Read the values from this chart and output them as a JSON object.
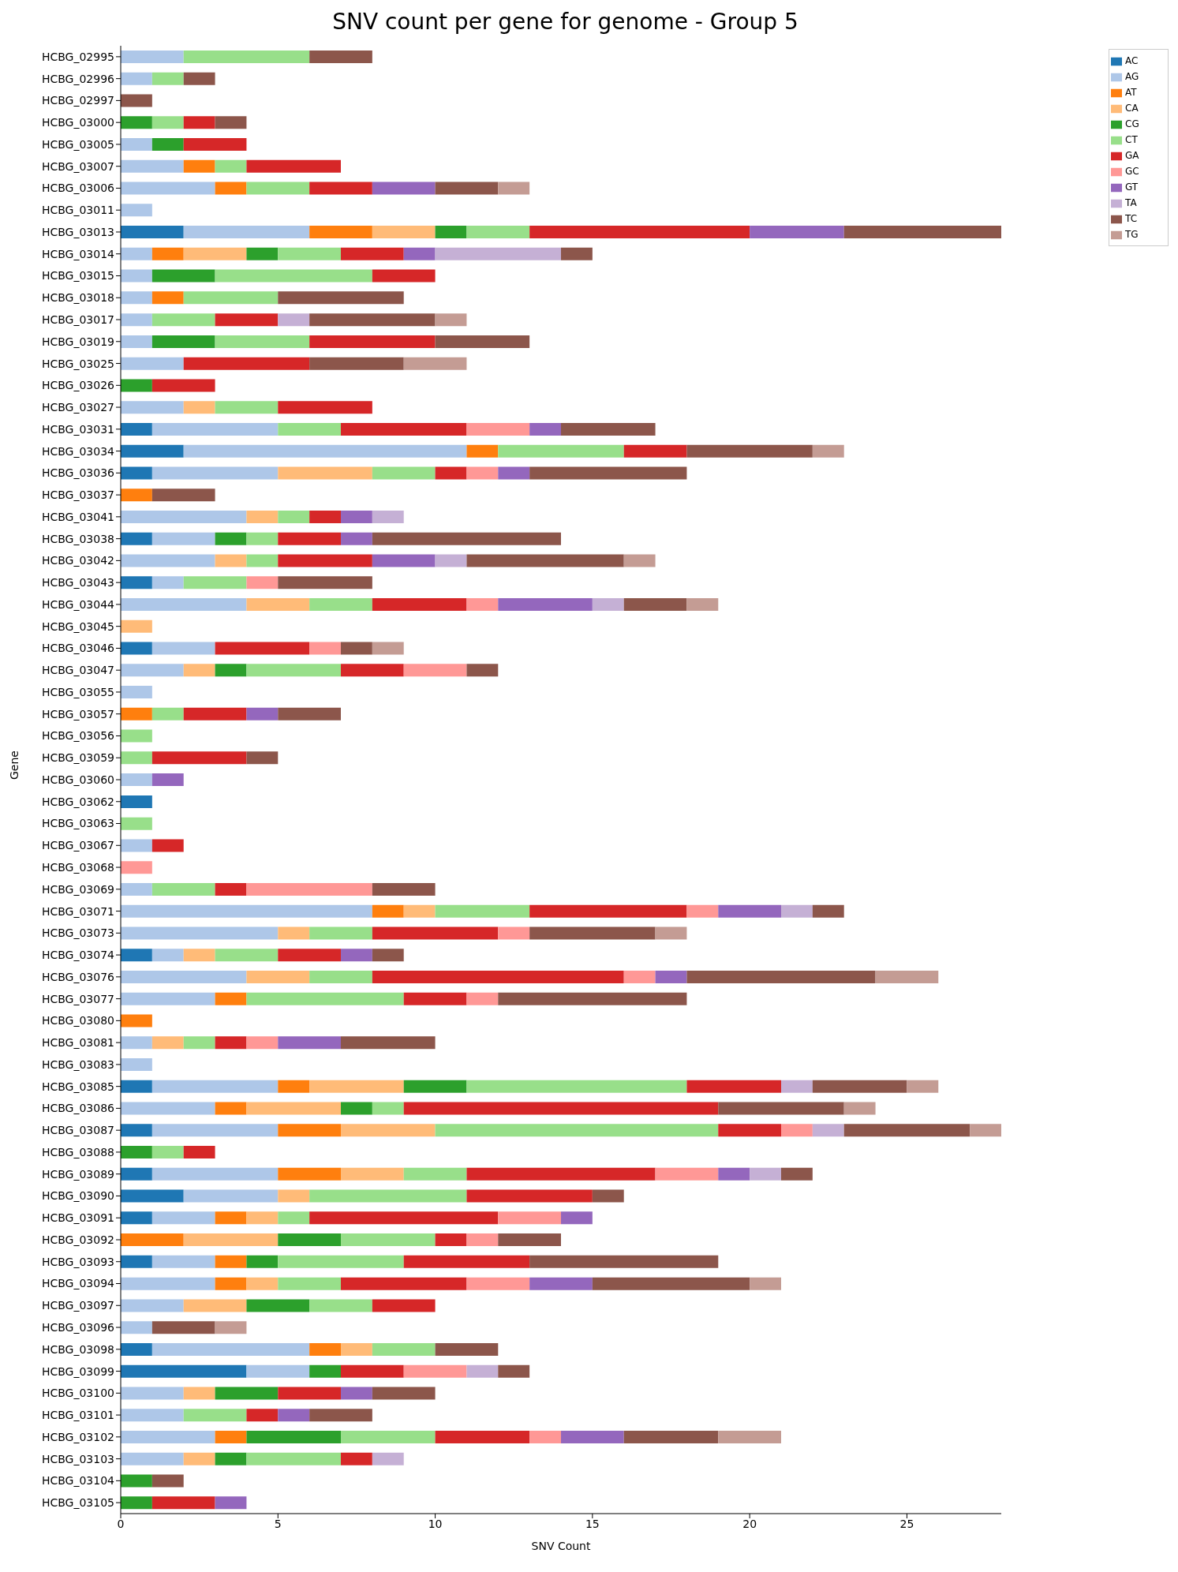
{
  "chart_data": {
    "type": "bar",
    "orientation": "horizontal",
    "stacked": true,
    "title": "SNV count per gene for genome - Group 5",
    "xlabel": "SNV Count",
    "ylabel": "Gene",
    "legend": "top right",
    "xlim": [
      0,
      28
    ],
    "xticks": [
      0,
      5,
      10,
      15,
      20,
      25
    ],
    "categories": [
      "HCBG_02995",
      "HCBG_02996",
      "HCBG_02997",
      "HCBG_03000",
      "HCBG_03005",
      "HCBG_03007",
      "HCBG_03006",
      "HCBG_03011",
      "HCBG_03013",
      "HCBG_03014",
      "HCBG_03015",
      "HCBG_03018",
      "HCBG_03017",
      "HCBG_03019",
      "HCBG_03025",
      "HCBG_03026",
      "HCBG_03027",
      "HCBG_03031",
      "HCBG_03034",
      "HCBG_03036",
      "HCBG_03037",
      "HCBG_03041",
      "HCBG_03038",
      "HCBG_03042",
      "HCBG_03043",
      "HCBG_03044",
      "HCBG_03045",
      "HCBG_03046",
      "HCBG_03047",
      "HCBG_03055",
      "HCBG_03057",
      "HCBG_03056",
      "HCBG_03059",
      "HCBG_03060",
      "HCBG_03062",
      "HCBG_03063",
      "HCBG_03067",
      "HCBG_03068",
      "HCBG_03069",
      "HCBG_03071",
      "HCBG_03073",
      "HCBG_03074",
      "HCBG_03076",
      "HCBG_03077",
      "HCBG_03080",
      "HCBG_03081",
      "HCBG_03083",
      "HCBG_03085",
      "HCBG_03086",
      "HCBG_03087",
      "HCBG_03088",
      "HCBG_03089",
      "HCBG_03090",
      "HCBG_03091",
      "HCBG_03092",
      "HCBG_03093",
      "HCBG_03094",
      "HCBG_03097",
      "HCBG_03096",
      "HCBG_03098",
      "HCBG_03099",
      "HCBG_03100",
      "HCBG_03101",
      "HCBG_03102",
      "HCBG_03103",
      "HCBG_03104",
      "HCBG_03105"
    ],
    "series": [
      {
        "name": "AC",
        "color": "#1f77b4",
        "values": [
          null,
          null,
          null,
          null,
          null,
          null,
          null,
          null,
          2,
          null,
          null,
          null,
          null,
          null,
          null,
          null,
          null,
          1,
          2,
          1,
          null,
          null,
          1,
          null,
          1,
          null,
          null,
          1,
          null,
          null,
          null,
          null,
          null,
          null,
          1,
          null,
          null,
          null,
          null,
          null,
          null,
          1,
          null,
          null,
          null,
          null,
          null,
          1,
          null,
          1,
          null,
          1,
          2,
          1,
          null,
          1,
          null,
          null,
          null,
          1,
          4,
          null,
          null,
          null,
          null,
          null,
          null
        ]
      },
      {
        "name": "AG",
        "color": "#aec7e8",
        "values": [
          2,
          1,
          null,
          null,
          1,
          2,
          3,
          1,
          4,
          1,
          1,
          1,
          1,
          1,
          2,
          null,
          2,
          4,
          9,
          4,
          null,
          4,
          2,
          3,
          1,
          4,
          null,
          2,
          2,
          1,
          null,
          null,
          null,
          1,
          null,
          null,
          1,
          null,
          1,
          8,
          5,
          1,
          4,
          3,
          null,
          1,
          1,
          4,
          3,
          4,
          null,
          4,
          3,
          2,
          null,
          2,
          3,
          2,
          1,
          5,
          2,
          2,
          2,
          3,
          2,
          null,
          null
        ]
      },
      {
        "name": "AT",
        "color": "#ff7f0e",
        "values": [
          null,
          null,
          null,
          null,
          null,
          1,
          1,
          null,
          2,
          1,
          null,
          1,
          null,
          null,
          null,
          null,
          null,
          null,
          1,
          null,
          1,
          null,
          null,
          null,
          null,
          null,
          null,
          null,
          null,
          null,
          1,
          null,
          null,
          null,
          null,
          null,
          null,
          null,
          null,
          1,
          null,
          null,
          null,
          1,
          1,
          null,
          null,
          1,
          1,
          2,
          null,
          2,
          null,
          1,
          2,
          1,
          1,
          null,
          null,
          1,
          null,
          null,
          null,
          1,
          null,
          null,
          null
        ]
      },
      {
        "name": "CA",
        "color": "#ffbb78",
        "values": [
          null,
          null,
          null,
          null,
          null,
          null,
          null,
          null,
          2,
          2,
          null,
          null,
          null,
          null,
          null,
          null,
          1,
          null,
          null,
          3,
          null,
          1,
          null,
          1,
          null,
          2,
          1,
          null,
          1,
          null,
          null,
          null,
          null,
          null,
          null,
          null,
          null,
          null,
          null,
          1,
          1,
          1,
          2,
          null,
          null,
          1,
          null,
          3,
          3,
          3,
          null,
          2,
          1,
          1,
          3,
          null,
          1,
          2,
          null,
          1,
          null,
          1,
          null,
          null,
          1,
          null,
          null
        ]
      },
      {
        "name": "CG",
        "color": "#2ca02c",
        "values": [
          null,
          null,
          null,
          1,
          1,
          null,
          null,
          null,
          1,
          1,
          2,
          null,
          null,
          2,
          null,
          1,
          null,
          null,
          null,
          null,
          null,
          null,
          1,
          null,
          null,
          null,
          null,
          null,
          1,
          null,
          null,
          null,
          null,
          null,
          null,
          null,
          null,
          null,
          null,
          null,
          null,
          null,
          null,
          null,
          null,
          null,
          null,
          2,
          1,
          null,
          1,
          null,
          null,
          null,
          2,
          1,
          null,
          2,
          null,
          null,
          1,
          2,
          null,
          3,
          1,
          1,
          1
        ]
      },
      {
        "name": "CT",
        "color": "#98df8a",
        "values": [
          4,
          1,
          null,
          1,
          null,
          1,
          2,
          null,
          2,
          2,
          5,
          3,
          2,
          3,
          null,
          null,
          2,
          2,
          4,
          2,
          null,
          1,
          1,
          1,
          2,
          2,
          null,
          null,
          3,
          null,
          1,
          1,
          1,
          null,
          null,
          1,
          null,
          null,
          2,
          3,
          2,
          2,
          2,
          5,
          null,
          1,
          null,
          7,
          1,
          9,
          1,
          2,
          5,
          1,
          3,
          4,
          2,
          2,
          null,
          2,
          null,
          null,
          2,
          3,
          3,
          null,
          null
        ]
      },
      {
        "name": "GA",
        "color": "#d62728",
        "values": [
          null,
          null,
          null,
          1,
          2,
          3,
          2,
          null,
          7,
          2,
          2,
          null,
          2,
          4,
          4,
          2,
          3,
          4,
          2,
          1,
          null,
          1,
          2,
          3,
          null,
          3,
          null,
          3,
          2,
          null,
          2,
          null,
          3,
          null,
          null,
          null,
          1,
          null,
          1,
          5,
          4,
          2,
          8,
          2,
          null,
          1,
          null,
          3,
          10,
          2,
          1,
          6,
          4,
          6,
          1,
          4,
          4,
          2,
          null,
          null,
          2,
          2,
          1,
          3,
          1,
          null,
          2
        ]
      },
      {
        "name": "GC",
        "color": "#ff9896",
        "values": [
          null,
          null,
          null,
          null,
          null,
          null,
          null,
          null,
          null,
          null,
          null,
          null,
          null,
          null,
          null,
          null,
          null,
          2,
          null,
          1,
          null,
          null,
          null,
          null,
          1,
          1,
          null,
          1,
          2,
          null,
          null,
          null,
          null,
          null,
          null,
          null,
          null,
          1,
          4,
          1,
          1,
          null,
          1,
          1,
          null,
          1,
          null,
          null,
          null,
          1,
          null,
          2,
          null,
          2,
          1,
          null,
          2,
          null,
          null,
          null,
          2,
          null,
          null,
          1,
          null,
          null,
          null
        ]
      },
      {
        "name": "GT",
        "color": "#9467bd",
        "values": [
          null,
          null,
          null,
          null,
          null,
          null,
          2,
          null,
          3,
          1,
          null,
          null,
          null,
          null,
          null,
          null,
          null,
          1,
          null,
          1,
          null,
          1,
          1,
          2,
          null,
          3,
          null,
          null,
          null,
          null,
          1,
          null,
          null,
          1,
          null,
          null,
          null,
          null,
          null,
          2,
          null,
          1,
          1,
          null,
          null,
          2,
          null,
          null,
          null,
          null,
          null,
          1,
          null,
          1,
          null,
          null,
          2,
          null,
          null,
          null,
          null,
          1,
          1,
          2,
          null,
          null,
          1
        ]
      },
      {
        "name": "TA",
        "color": "#c5b0d5",
        "values": [
          null,
          null,
          null,
          null,
          null,
          null,
          null,
          null,
          null,
          4,
          null,
          null,
          1,
          null,
          null,
          null,
          null,
          null,
          null,
          null,
          null,
          1,
          null,
          1,
          null,
          1,
          null,
          null,
          null,
          null,
          null,
          null,
          null,
          null,
          null,
          null,
          null,
          null,
          null,
          1,
          null,
          null,
          null,
          null,
          null,
          null,
          null,
          1,
          null,
          1,
          null,
          1,
          null,
          null,
          null,
          null,
          null,
          null,
          null,
          null,
          1,
          null,
          null,
          null,
          1,
          null,
          null
        ]
      },
      {
        "name": "TC",
        "color": "#8c564b",
        "values": [
          2,
          1,
          1,
          1,
          null,
          null,
          2,
          null,
          5,
          1,
          null,
          4,
          4,
          3,
          3,
          null,
          null,
          3,
          4,
          5,
          2,
          null,
          6,
          5,
          3,
          2,
          null,
          1,
          1,
          null,
          2,
          null,
          1,
          null,
          null,
          null,
          null,
          null,
          2,
          1,
          4,
          1,
          6,
          6,
          null,
          3,
          null,
          3,
          4,
          4,
          null,
          1,
          1,
          null,
          2,
          6,
          5,
          null,
          2,
          2,
          1,
          2,
          2,
          3,
          null,
          1,
          null
        ]
      },
      {
        "name": "TG",
        "color": "#c49c94",
        "values": [
          null,
          null,
          null,
          null,
          null,
          null,
          1,
          null,
          null,
          null,
          null,
          null,
          1,
          null,
          2,
          null,
          null,
          null,
          1,
          null,
          null,
          null,
          null,
          1,
          null,
          1,
          null,
          1,
          null,
          null,
          null,
          null,
          null,
          null,
          null,
          null,
          null,
          null,
          null,
          null,
          1,
          null,
          2,
          null,
          null,
          null,
          null,
          1,
          1,
          1,
          null,
          null,
          null,
          null,
          null,
          null,
          1,
          null,
          1,
          null,
          null,
          null,
          null,
          2,
          null,
          null,
          null
        ]
      }
    ]
  }
}
